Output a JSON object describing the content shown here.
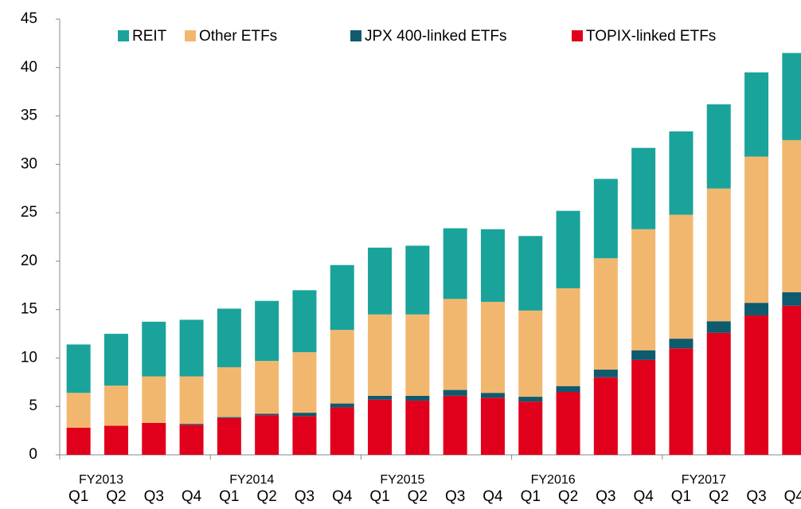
{
  "chart_data": {
    "type": "stacked_bar",
    "categories": [
      "Q1",
      "Q2",
      "Q3",
      "Q4",
      "Q1",
      "Q2",
      "Q3",
      "Q4",
      "Q1",
      "Q2",
      "Q3",
      "Q4",
      "Q1",
      "Q2",
      "Q3",
      "Q4",
      "Q1",
      "Q2",
      "Q3",
      "Q4"
    ],
    "fiscal_years": [
      "FY2013",
      "FY2014",
      "FY2015",
      "FY2016",
      "FY2017"
    ],
    "series": [
      {
        "name": "REIT",
        "color": "#1aa39a",
        "values": [
          5.0,
          5.35,
          5.65,
          5.85,
          6.05,
          6.2,
          6.4,
          6.7,
          6.9,
          7.1,
          7.3,
          7.5,
          7.7,
          8.0,
          8.2,
          8.4,
          8.6,
          8.7,
          8.7,
          9.0
        ]
      },
      {
        "name": "Other ETFs",
        "color": "#f2b76e",
        "values": [
          3.6,
          4.15,
          4.8,
          4.9,
          5.15,
          5.45,
          6.25,
          7.6,
          8.4,
          8.4,
          9.4,
          9.4,
          8.9,
          10.1,
          11.5,
          12.5,
          12.8,
          13.7,
          15.1,
          15.7
        ]
      },
      {
        "name": "JPX 400-linked ETFs",
        "color": "#0e5a6e",
        "values": [
          0,
          0,
          0,
          0.1,
          0.1,
          0.15,
          0.35,
          0.4,
          0.4,
          0.5,
          0.6,
          0.5,
          0.5,
          0.6,
          0.8,
          1.0,
          1.0,
          1.2,
          1.3,
          1.4
        ]
      },
      {
        "name": "TOPIX-linked ETFs",
        "color": "#e0001b",
        "values": [
          2.8,
          3.0,
          3.3,
          3.1,
          3.8,
          4.1,
          4.0,
          4.9,
          5.7,
          5.6,
          6.1,
          5.9,
          5.5,
          6.5,
          8.0,
          9.8,
          11.0,
          12.6,
          14.4,
          15.4
        ]
      }
    ],
    "ylim": [
      0,
      45
    ],
    "yticks": [
      0,
      5,
      10,
      15,
      20,
      25,
      30,
      35,
      40,
      45
    ],
    "grid": false,
    "legend": "top"
  }
}
